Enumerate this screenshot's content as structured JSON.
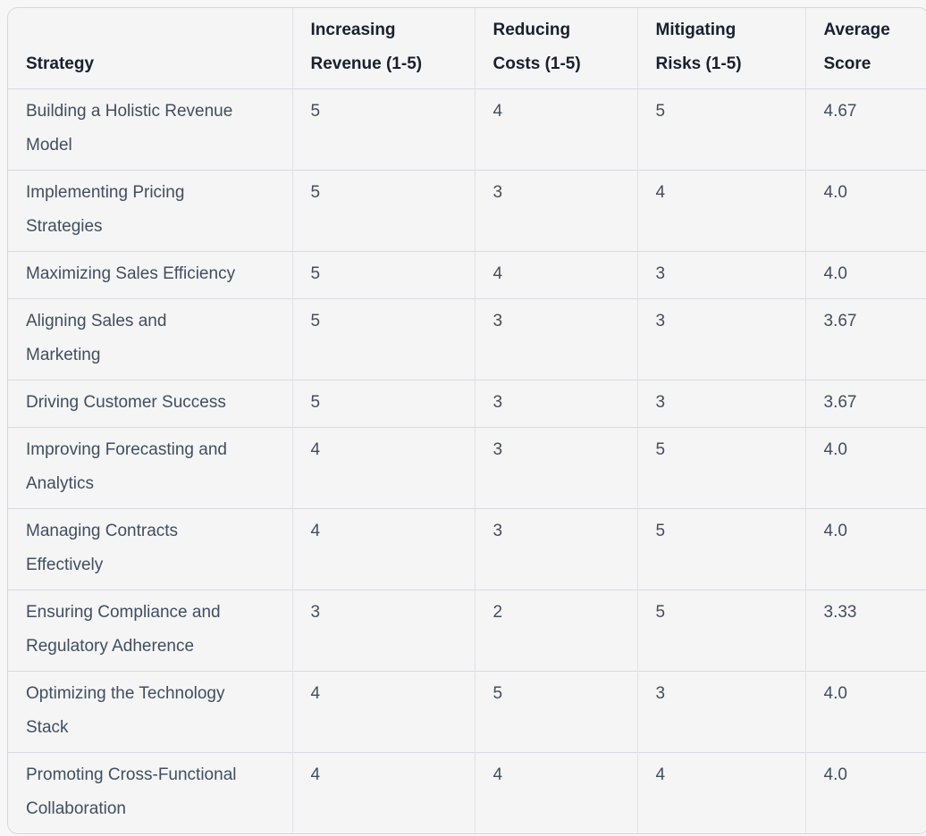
{
  "colors": {
    "page_background": "#f7f7f8",
    "cell_background": "#f5f5f6",
    "outer_border": "#d6d6de",
    "row_border": "#d9d9e2",
    "column_border": "#e0e0e8",
    "header_text": "#18202f",
    "body_text": "#414e60"
  },
  "table": {
    "header": [
      "Strategy",
      "Increasing\nRevenue (1-5)",
      "Reducing\nCosts (1-5)",
      "Mitigating\nRisks (1-5)",
      "Average\nScore"
    ],
    "rows": [
      [
        "Building a Holistic Revenue\nModel",
        "5",
        "4",
        "5",
        "4.67"
      ],
      [
        "Implementing Pricing\nStrategies",
        "5",
        "3",
        "4",
        "4.0"
      ],
      [
        "Maximizing Sales Efficiency",
        "5",
        "4",
        "3",
        "4.0"
      ],
      [
        "Aligning Sales and\nMarketing",
        "5",
        "3",
        "3",
        "3.67"
      ],
      [
        "Driving Customer Success",
        "5",
        "3",
        "3",
        "3.67"
      ],
      [
        "Improving Forecasting and\nAnalytics",
        "4",
        "3",
        "5",
        "4.0"
      ],
      [
        "Managing Contracts\nEffectively",
        "4",
        "3",
        "5",
        "4.0"
      ],
      [
        "Ensuring Compliance and\nRegulatory Adherence",
        "3",
        "2",
        "5",
        "3.33"
      ],
      [
        "Optimizing the Technology\nStack",
        "4",
        "5",
        "3",
        "4.0"
      ],
      [
        "Promoting Cross-Functional\nCollaboration",
        "4",
        "4",
        "4",
        "4.0"
      ]
    ]
  },
  "chart_data": {
    "type": "table",
    "columns": [
      "Strategy",
      "Increasing Revenue (1-5)",
      "Reducing Costs (1-5)",
      "Mitigating Risks (1-5)",
      "Average Score"
    ],
    "rows": [
      [
        "Building a Holistic Revenue Model",
        5,
        4,
        5,
        4.67
      ],
      [
        "Implementing Pricing Strategies",
        5,
        3,
        4,
        4.0
      ],
      [
        "Maximizing Sales Efficiency",
        5,
        4,
        3,
        4.0
      ],
      [
        "Aligning Sales and Marketing",
        5,
        3,
        3,
        3.67
      ],
      [
        "Driving Customer Success",
        5,
        3,
        3,
        3.67
      ],
      [
        "Improving Forecasting and Analytics",
        4,
        3,
        5,
        4.0
      ],
      [
        "Managing Contracts Effectively",
        4,
        3,
        5,
        4.0
      ],
      [
        "Ensuring Compliance and Regulatory Adherence",
        3,
        2,
        5,
        3.33
      ],
      [
        "Optimizing the Technology Stack",
        4,
        5,
        3,
        4.0
      ],
      [
        "Promoting Cross-Functional Collaboration",
        4,
        4,
        4,
        4.0
      ]
    ]
  }
}
